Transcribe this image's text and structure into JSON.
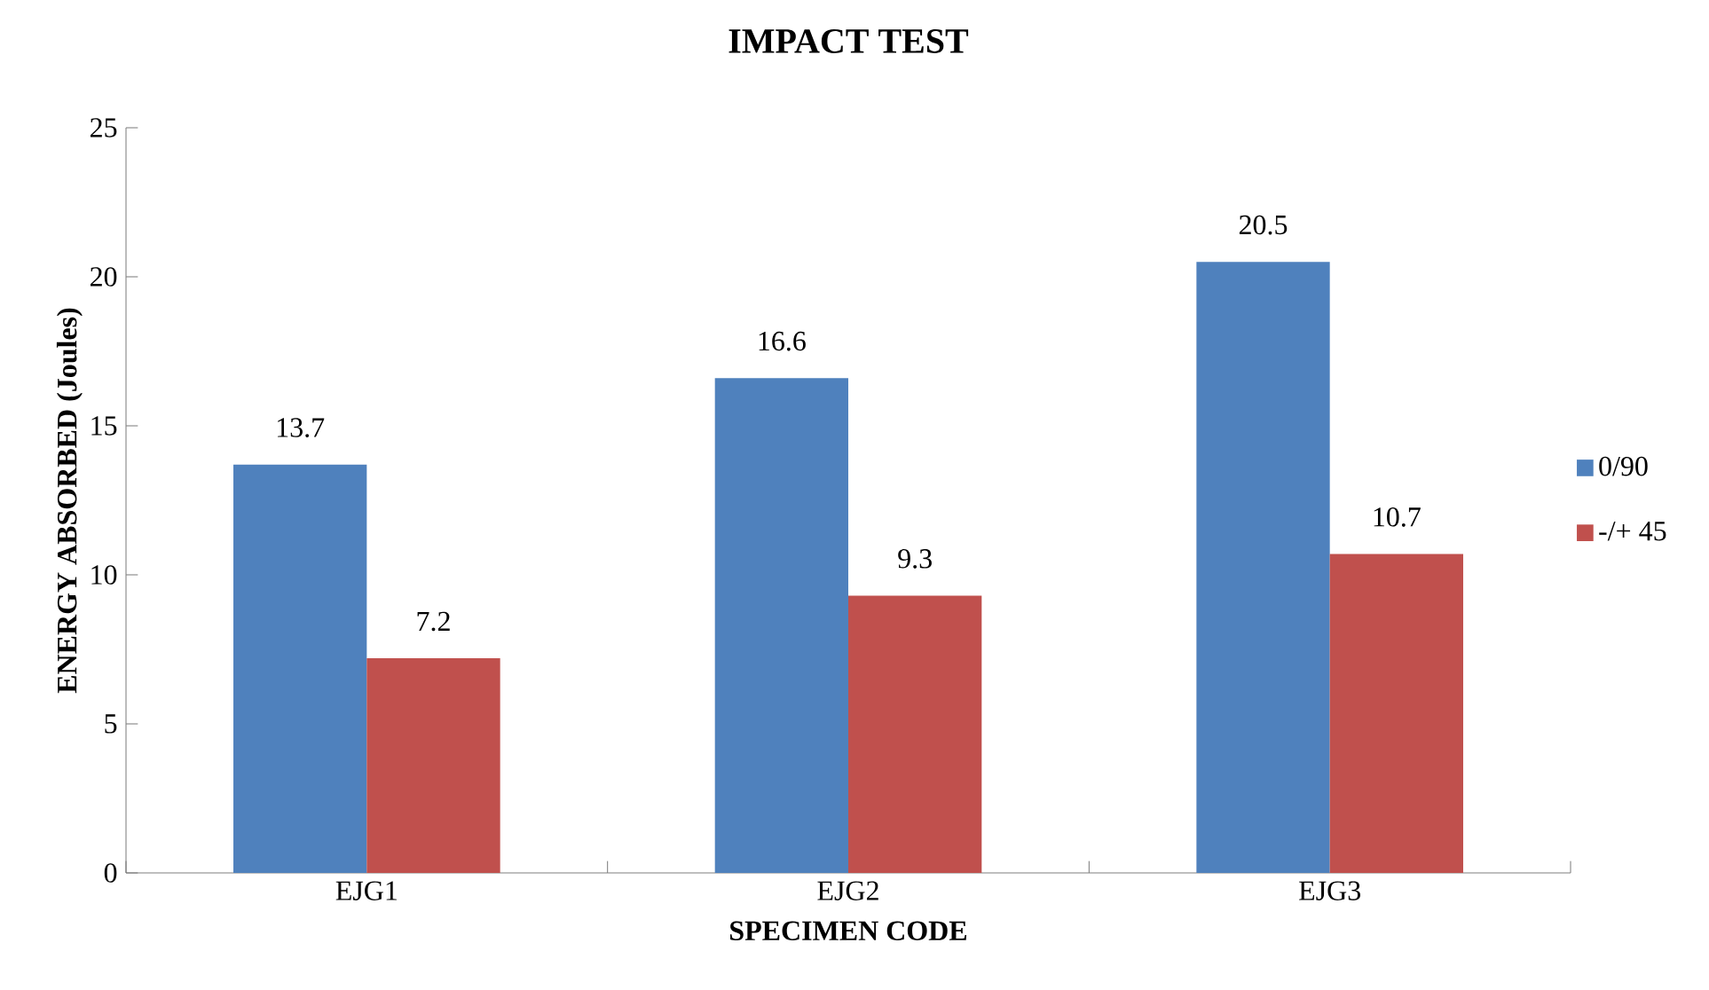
{
  "chart_data": {
    "type": "bar",
    "title": "IMPACT TEST",
    "xlabel": "SPECIMEN CODE",
    "ylabel": "ENERGY ABSORBED (Joules)",
    "categories": [
      "EJG1",
      "EJG2",
      "EJG3"
    ],
    "series": [
      {
        "name": "0/90",
        "color": "#4f81bd",
        "values": [
          13.7,
          16.6,
          20.5
        ]
      },
      {
        "name": "-/+ 45",
        "color": "#c0504d",
        "values": [
          7.2,
          9.3,
          10.7
        ]
      }
    ],
    "ylim": [
      0,
      25
    ],
    "yticks": [
      0,
      5,
      10,
      15,
      20,
      25
    ],
    "grid": false,
    "legend": "right",
    "data_labels": true
  }
}
